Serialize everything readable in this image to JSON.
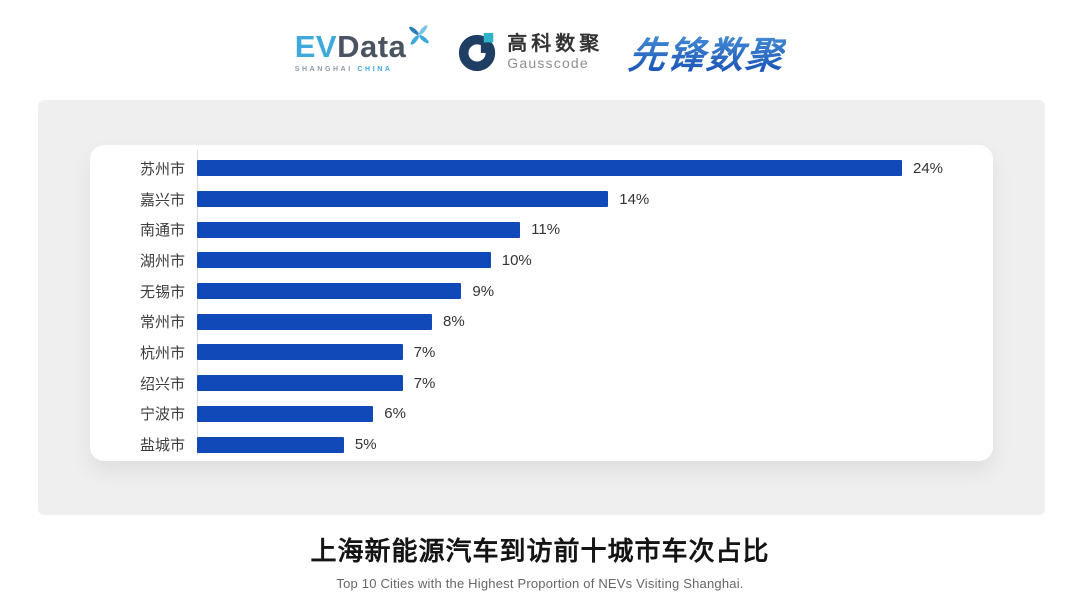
{
  "header": {
    "evdata": {
      "part1": "EV",
      "part2": "Data",
      "tagline_left": "SHANGHAI",
      "tagline_right": "CHINA"
    },
    "gausscode": {
      "name_cn": "高科数聚",
      "name_en": "Gausscode"
    },
    "pioneer": {
      "name": "先锋数聚"
    }
  },
  "chart_data": {
    "type": "bar",
    "orientation": "horizontal",
    "categories": [
      "苏州市",
      "嘉兴市",
      "南通市",
      "湖州市",
      "无锡市",
      "常州市",
      "杭州市",
      "绍兴市",
      "宁波市",
      "盐城市"
    ],
    "values": [
      24,
      14,
      11,
      10,
      9,
      8,
      7,
      7,
      6,
      5
    ],
    "value_suffix": "%",
    "xlim": [
      0,
      24
    ],
    "grid": false,
    "legend": false,
    "bar_color": "#1149b8",
    "title": "上海新能源汽车到访前十城市车次占比",
    "subtitle": "Top 10 Cities with the Highest Proportion of  NEVs Visiting Shanghai."
  },
  "colors": {
    "bar": "#1149b8",
    "panel_bg": "#efefef",
    "evdata_blue": "#3fa9dc",
    "evdata_dark": "#4a5360",
    "gausscode_navy": "#1e3e63",
    "gausscode_teal": "#2fb3c6",
    "pioneer_light": "#4f9bdc",
    "pioneer_dark": "#1c56b8"
  }
}
